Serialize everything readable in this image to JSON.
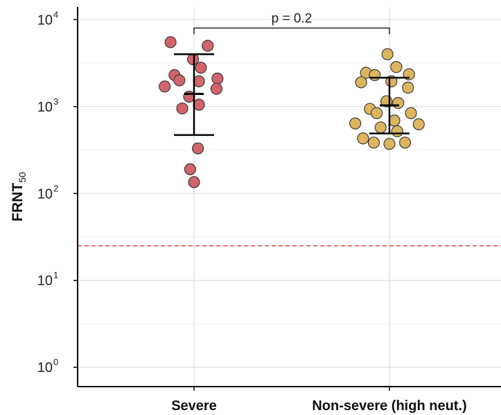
{
  "chart_data": {
    "type": "scatter",
    "ylabel_main": "FRNT",
    "ylabel_sub": "50",
    "y_scale": "log10",
    "ylim": [
      0.6,
      14000
    ],
    "y_ticks": [
      {
        "value": 1,
        "base": "10",
        "exp": "0"
      },
      {
        "value": 10,
        "base": "10",
        "exp": "1"
      },
      {
        "value": 100,
        "base": "10",
        "exp": "2"
      },
      {
        "value": 1000,
        "base": "10",
        "exp": "3"
      },
      {
        "value": 10000,
        "base": "10",
        "exp": "4"
      }
    ],
    "categories": [
      "Severe",
      "Non-severe (high neut.)"
    ],
    "grid": true,
    "threshold": {
      "value": 25,
      "color": "#e8413c",
      "style": "dashed"
    },
    "comparison": {
      "from": 0,
      "to": 1,
      "label": "p = 0.2",
      "y": 8000
    },
    "series": [
      {
        "category": "Severe",
        "color": "#d2646b",
        "points": [
          {
            "jitter": -0.24,
            "y": 5500
          },
          {
            "jitter": 0.14,
            "y": 5000
          },
          {
            "jitter": -0.01,
            "y": 3500
          },
          {
            "jitter": 0.07,
            "y": 2800
          },
          {
            "jitter": -0.2,
            "y": 2300
          },
          {
            "jitter": -0.15,
            "y": 2000
          },
          {
            "jitter": 0.24,
            "y": 2100
          },
          {
            "jitter": 0.05,
            "y": 1950
          },
          {
            "jitter": -0.3,
            "y": 1700
          },
          {
            "jitter": 0.23,
            "y": 1600
          },
          {
            "jitter": -0.05,
            "y": 1300
          },
          {
            "jitter": 0.05,
            "y": 1050
          },
          {
            "jitter": -0.12,
            "y": 950
          },
          {
            "jitter": 0.04,
            "y": 330
          },
          {
            "jitter": -0.04,
            "y": 190
          },
          {
            "jitter": 0.0,
            "y": 135
          }
        ],
        "mean": 1400,
        "error": [
          470,
          4000
        ]
      },
      {
        "category": "Non-severe (high neut.)",
        "color": "#ddb55f",
        "points": [
          {
            "jitter": -0.02,
            "y": 4000
          },
          {
            "jitter": 0.07,
            "y": 2850
          },
          {
            "jitter": -0.24,
            "y": 2450
          },
          {
            "jitter": -0.15,
            "y": 2300
          },
          {
            "jitter": 0.2,
            "y": 2350
          },
          {
            "jitter": -0.29,
            "y": 1900
          },
          {
            "jitter": 0.02,
            "y": 1950
          },
          {
            "jitter": 0.19,
            "y": 1650
          },
          {
            "jitter": -0.03,
            "y": 1150
          },
          {
            "jitter": 0.09,
            "y": 1100
          },
          {
            "jitter": -0.2,
            "y": 940
          },
          {
            "jitter": -0.13,
            "y": 840
          },
          {
            "jitter": 0.22,
            "y": 840
          },
          {
            "jitter": 0.05,
            "y": 690
          },
          {
            "jitter": -0.35,
            "y": 640
          },
          {
            "jitter": 0.3,
            "y": 625
          },
          {
            "jitter": -0.09,
            "y": 575
          },
          {
            "jitter": 0.08,
            "y": 520
          },
          {
            "jitter": -0.27,
            "y": 430
          },
          {
            "jitter": -0.16,
            "y": 385
          },
          {
            "jitter": 0.0,
            "y": 372
          },
          {
            "jitter": 0.16,
            "y": 385
          }
        ],
        "mean": 1030,
        "error": [
          490,
          2150
        ]
      }
    ]
  }
}
